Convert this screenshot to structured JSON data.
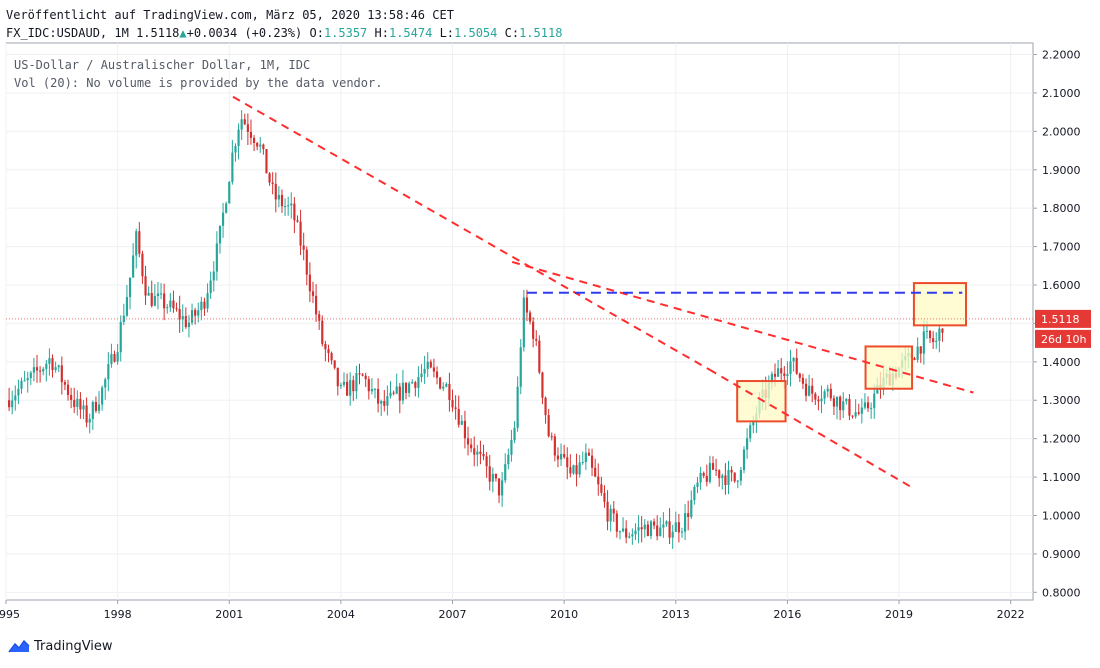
{
  "header": {
    "published": "Veröffentlicht auf TradingView.com, März 05, 2020 13:58:46 CET",
    "symbol": "FX_IDC:USDAUD, 1M",
    "last": "1.5118",
    "change": "+0.0034 (+0.23%)",
    "o_label": "O:",
    "o_value": "1.5357",
    "h_label": "H:",
    "h_value": "1.5474",
    "l_label": "L:",
    "l_value": "1.5054",
    "c_label": "C:",
    "c_value": "1.5118"
  },
  "legend": {
    "line1": "US-Dollar / Australischer Dollar, 1M, IDC",
    "line2": "Vol (20): No volume is provided by the data vendor."
  },
  "price_label": "1.5118",
  "countdown_label": "26d 10h",
  "footer": {
    "brand": "TradingView"
  },
  "colors": {
    "up": "#26a69a",
    "down": "#d32f2f",
    "trend": "#ff2d2d",
    "level": "#2e3bf0",
    "box_fill": "#fff9c4",
    "box_stroke": "#ee4b2b"
  },
  "chart_data": {
    "type": "candlestick",
    "x_ticks": [
      "1995",
      "1998",
      "2001",
      "2004",
      "2007",
      "2010",
      "2013",
      "2016",
      "2019",
      "2022"
    ],
    "y_ticks": [
      "0.8000",
      "0.9000",
      "1.0000",
      "1.1000",
      "1.2000",
      "1.3000",
      "1.4000",
      "1.5000",
      "1.6000",
      "1.7000",
      "1.8000",
      "1.9000",
      "2.0000",
      "2.1000",
      "2.2000"
    ],
    "ylim": [
      0.78,
      2.23
    ],
    "xlim": [
      1995.0,
      2022.6
    ],
    "current_price": 1.5118,
    "anchors": [
      [
        1995.0,
        1.3
      ],
      [
        1995.6,
        1.35
      ],
      [
        1996.2,
        1.41
      ],
      [
        1996.8,
        1.3
      ],
      [
        1997.2,
        1.25
      ],
      [
        1997.6,
        1.33
      ],
      [
        1998.0,
        1.45
      ],
      [
        1998.3,
        1.6
      ],
      [
        1998.5,
        1.72
      ],
      [
        1998.8,
        1.57
      ],
      [
        1999.3,
        1.55
      ],
      [
        1999.9,
        1.5
      ],
      [
        2000.3,
        1.55
      ],
      [
        2000.7,
        1.7
      ],
      [
        2001.1,
        1.95
      ],
      [
        2001.3,
        2.04
      ],
      [
        2001.8,
        1.97
      ],
      [
        2002.2,
        1.83
      ],
      [
        2002.7,
        1.79
      ],
      [
        2003.0,
        1.68
      ],
      [
        2003.5,
        1.45
      ],
      [
        2004.0,
        1.32
      ],
      [
        2004.6,
        1.36
      ],
      [
        2005.1,
        1.28
      ],
      [
        2005.7,
        1.33
      ],
      [
        2006.3,
        1.38
      ],
      [
        2006.9,
        1.33
      ],
      [
        2007.4,
        1.2
      ],
      [
        2007.9,
        1.12
      ],
      [
        2008.3,
        1.06
      ],
      [
        2008.7,
        1.25
      ],
      [
        2008.9,
        1.55
      ],
      [
        2009.2,
        1.47
      ],
      [
        2009.6,
        1.2
      ],
      [
        2010.2,
        1.1
      ],
      [
        2010.6,
        1.15
      ],
      [
        2011.2,
        1.0
      ],
      [
        2011.6,
        0.95
      ],
      [
        2012.2,
        0.97
      ],
      [
        2012.7,
        0.96
      ],
      [
        2013.2,
        0.98
      ],
      [
        2013.6,
        1.08
      ],
      [
        2014.0,
        1.12
      ],
      [
        2014.6,
        1.09
      ],
      [
        2015.2,
        1.28
      ],
      [
        2015.7,
        1.37
      ],
      [
        2016.1,
        1.4
      ],
      [
        2016.6,
        1.32
      ],
      [
        2017.1,
        1.32
      ],
      [
        2017.6,
        1.28
      ],
      [
        2018.0,
        1.26
      ],
      [
        2018.6,
        1.35
      ],
      [
        2019.2,
        1.4
      ],
      [
        2019.7,
        1.46
      ],
      [
        2020.0,
        1.45
      ],
      [
        2020.2,
        1.51
      ]
    ],
    "annotations": {
      "trendlines": [
        {
          "x1": 2001.1,
          "y1": 2.09,
          "x2": 2013.9,
          "y2": 1.38
        },
        {
          "x1": 2013.9,
          "y1": 1.38,
          "x2": 2019.4,
          "y2": 1.07
        },
        {
          "x1": 2008.6,
          "y1": 1.66,
          "x2": 2021.0,
          "y2": 1.32
        }
      ],
      "horizontal_level": {
        "y": 1.58,
        "x1": 2009.0,
        "x2": 2020.7
      },
      "boxes": [
        {
          "x1": 2014.65,
          "x2": 2015.95,
          "y1": 1.245,
          "y2": 1.35
        },
        {
          "x1": 2018.1,
          "x2": 2019.35,
          "y1": 1.33,
          "y2": 1.44
        },
        {
          "x1": 2019.4,
          "x2": 2020.8,
          "y1": 1.495,
          "y2": 1.605
        }
      ]
    }
  }
}
